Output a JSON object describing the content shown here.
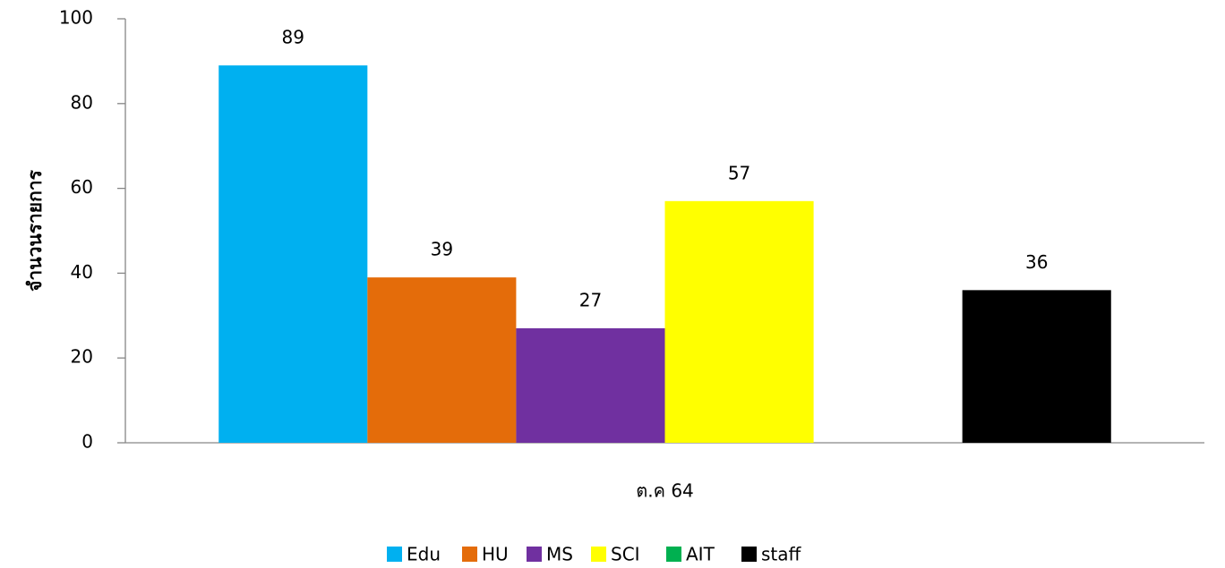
{
  "chart_data": {
    "type": "bar",
    "categories": [
      "ต.ค 64"
    ],
    "y_label": "จำนวนรายการ",
    "series": [
      {
        "name": "Edu",
        "color": "#00b0f0",
        "values": [
          89
        ]
      },
      {
        "name": "HU",
        "color": "#e46c0a",
        "values": [
          39
        ]
      },
      {
        "name": "MS",
        "color": "#7030a0",
        "values": [
          27
        ]
      },
      {
        "name": "SCI",
        "color": "#ffff00",
        "values": [
          57
        ]
      },
      {
        "name": "AIT",
        "color": "#00b050",
        "values": [
          null
        ]
      },
      {
        "name": "staff",
        "color": "#000000",
        "values": [
          36
        ]
      }
    ],
    "ylim": [
      0,
      100
    ],
    "yticks": [
      0,
      20,
      40,
      60,
      80,
      100
    ],
    "grid": false,
    "legend": "bottom"
  }
}
